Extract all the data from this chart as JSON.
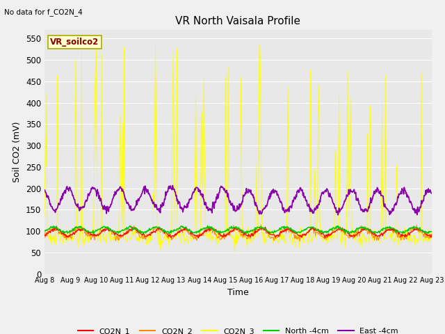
{
  "title": "VR North Vaisala Profile",
  "subtitle": "No data for f_CO2N_4",
  "ylabel": "Soil CO2 (mV)",
  "xlabel": "Time",
  "inset_label": "VR_soilco2",
  "ylim": [
    0,
    570
  ],
  "yticks": [
    0,
    50,
    100,
    150,
    200,
    250,
    300,
    350,
    400,
    450,
    500,
    550
  ],
  "x_labels": [
    "Aug 8",
    "Aug 9",
    "Aug 10",
    "Aug 11",
    "Aug 12",
    "Aug 13",
    "Aug 14",
    "Aug 15",
    "Aug 16",
    "Aug 17",
    "Aug 18",
    "Aug 19",
    "Aug 20",
    "Aug 21",
    "Aug 22",
    "Aug 23"
  ],
  "co2n1_color": "#ff0000",
  "co2n2_color": "#ff8800",
  "co2n3_color": "#ffff00",
  "north_color": "#00cc00",
  "east_color": "#8800aa",
  "fig_bg": "#f0f0f0",
  "plot_bg": "#e8e8e8",
  "grid_color": "#ffffff",
  "inset_facecolor": "#ffffcc",
  "inset_edgecolor": "#aaaa00",
  "inset_textcolor": "#880000"
}
